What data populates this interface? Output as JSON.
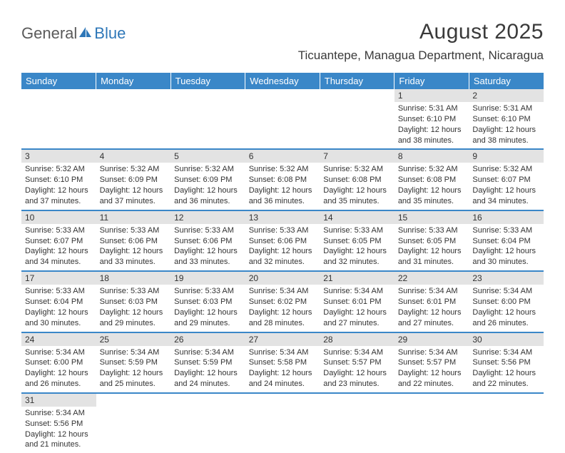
{
  "logo": {
    "text1": "General",
    "text2": "Blue"
  },
  "title": "August 2025",
  "location": "Ticuantepe, Managua Department, Nicaragua",
  "colors": {
    "header_bg": "#3a87c8",
    "header_text": "#ffffff",
    "daynum_bg": "#e3e3e3",
    "row_divider": "#3a87c8",
    "body_text": "#333333",
    "logo_gray": "#5a5a5a",
    "logo_blue": "#2e77b8"
  },
  "fonts": {
    "title_size_pt": 22,
    "location_size_pt": 13,
    "header_size_pt": 10,
    "body_size_pt": 8
  },
  "weekdays": [
    "Sunday",
    "Monday",
    "Tuesday",
    "Wednesday",
    "Thursday",
    "Friday",
    "Saturday"
  ],
  "weeks": [
    [
      {
        "n": "",
        "sr": "",
        "ss": "",
        "dl": ""
      },
      {
        "n": "",
        "sr": "",
        "ss": "",
        "dl": ""
      },
      {
        "n": "",
        "sr": "",
        "ss": "",
        "dl": ""
      },
      {
        "n": "",
        "sr": "",
        "ss": "",
        "dl": ""
      },
      {
        "n": "",
        "sr": "",
        "ss": "",
        "dl": ""
      },
      {
        "n": "1",
        "sr": "Sunrise: 5:31 AM",
        "ss": "Sunset: 6:10 PM",
        "dl": "Daylight: 12 hours and 38 minutes."
      },
      {
        "n": "2",
        "sr": "Sunrise: 5:31 AM",
        "ss": "Sunset: 6:10 PM",
        "dl": "Daylight: 12 hours and 38 minutes."
      }
    ],
    [
      {
        "n": "3",
        "sr": "Sunrise: 5:32 AM",
        "ss": "Sunset: 6:10 PM",
        "dl": "Daylight: 12 hours and 37 minutes."
      },
      {
        "n": "4",
        "sr": "Sunrise: 5:32 AM",
        "ss": "Sunset: 6:09 PM",
        "dl": "Daylight: 12 hours and 37 minutes."
      },
      {
        "n": "5",
        "sr": "Sunrise: 5:32 AM",
        "ss": "Sunset: 6:09 PM",
        "dl": "Daylight: 12 hours and 36 minutes."
      },
      {
        "n": "6",
        "sr": "Sunrise: 5:32 AM",
        "ss": "Sunset: 6:08 PM",
        "dl": "Daylight: 12 hours and 36 minutes."
      },
      {
        "n": "7",
        "sr": "Sunrise: 5:32 AM",
        "ss": "Sunset: 6:08 PM",
        "dl": "Daylight: 12 hours and 35 minutes."
      },
      {
        "n": "8",
        "sr": "Sunrise: 5:32 AM",
        "ss": "Sunset: 6:08 PM",
        "dl": "Daylight: 12 hours and 35 minutes."
      },
      {
        "n": "9",
        "sr": "Sunrise: 5:32 AM",
        "ss": "Sunset: 6:07 PM",
        "dl": "Daylight: 12 hours and 34 minutes."
      }
    ],
    [
      {
        "n": "10",
        "sr": "Sunrise: 5:33 AM",
        "ss": "Sunset: 6:07 PM",
        "dl": "Daylight: 12 hours and 34 minutes."
      },
      {
        "n": "11",
        "sr": "Sunrise: 5:33 AM",
        "ss": "Sunset: 6:06 PM",
        "dl": "Daylight: 12 hours and 33 minutes."
      },
      {
        "n": "12",
        "sr": "Sunrise: 5:33 AM",
        "ss": "Sunset: 6:06 PM",
        "dl": "Daylight: 12 hours and 33 minutes."
      },
      {
        "n": "13",
        "sr": "Sunrise: 5:33 AM",
        "ss": "Sunset: 6:06 PM",
        "dl": "Daylight: 12 hours and 32 minutes."
      },
      {
        "n": "14",
        "sr": "Sunrise: 5:33 AM",
        "ss": "Sunset: 6:05 PM",
        "dl": "Daylight: 12 hours and 32 minutes."
      },
      {
        "n": "15",
        "sr": "Sunrise: 5:33 AM",
        "ss": "Sunset: 6:05 PM",
        "dl": "Daylight: 12 hours and 31 minutes."
      },
      {
        "n": "16",
        "sr": "Sunrise: 5:33 AM",
        "ss": "Sunset: 6:04 PM",
        "dl": "Daylight: 12 hours and 30 minutes."
      }
    ],
    [
      {
        "n": "17",
        "sr": "Sunrise: 5:33 AM",
        "ss": "Sunset: 6:04 PM",
        "dl": "Daylight: 12 hours and 30 minutes."
      },
      {
        "n": "18",
        "sr": "Sunrise: 5:33 AM",
        "ss": "Sunset: 6:03 PM",
        "dl": "Daylight: 12 hours and 29 minutes."
      },
      {
        "n": "19",
        "sr": "Sunrise: 5:33 AM",
        "ss": "Sunset: 6:03 PM",
        "dl": "Daylight: 12 hours and 29 minutes."
      },
      {
        "n": "20",
        "sr": "Sunrise: 5:34 AM",
        "ss": "Sunset: 6:02 PM",
        "dl": "Daylight: 12 hours and 28 minutes."
      },
      {
        "n": "21",
        "sr": "Sunrise: 5:34 AM",
        "ss": "Sunset: 6:01 PM",
        "dl": "Daylight: 12 hours and 27 minutes."
      },
      {
        "n": "22",
        "sr": "Sunrise: 5:34 AM",
        "ss": "Sunset: 6:01 PM",
        "dl": "Daylight: 12 hours and 27 minutes."
      },
      {
        "n": "23",
        "sr": "Sunrise: 5:34 AM",
        "ss": "Sunset: 6:00 PM",
        "dl": "Daylight: 12 hours and 26 minutes."
      }
    ],
    [
      {
        "n": "24",
        "sr": "Sunrise: 5:34 AM",
        "ss": "Sunset: 6:00 PM",
        "dl": "Daylight: 12 hours and 26 minutes."
      },
      {
        "n": "25",
        "sr": "Sunrise: 5:34 AM",
        "ss": "Sunset: 5:59 PM",
        "dl": "Daylight: 12 hours and 25 minutes."
      },
      {
        "n": "26",
        "sr": "Sunrise: 5:34 AM",
        "ss": "Sunset: 5:59 PM",
        "dl": "Daylight: 12 hours and 24 minutes."
      },
      {
        "n": "27",
        "sr": "Sunrise: 5:34 AM",
        "ss": "Sunset: 5:58 PM",
        "dl": "Daylight: 12 hours and 24 minutes."
      },
      {
        "n": "28",
        "sr": "Sunrise: 5:34 AM",
        "ss": "Sunset: 5:57 PM",
        "dl": "Daylight: 12 hours and 23 minutes."
      },
      {
        "n": "29",
        "sr": "Sunrise: 5:34 AM",
        "ss": "Sunset: 5:57 PM",
        "dl": "Daylight: 12 hours and 22 minutes."
      },
      {
        "n": "30",
        "sr": "Sunrise: 5:34 AM",
        "ss": "Sunset: 5:56 PM",
        "dl": "Daylight: 12 hours and 22 minutes."
      }
    ],
    [
      {
        "n": "31",
        "sr": "Sunrise: 5:34 AM",
        "ss": "Sunset: 5:56 PM",
        "dl": "Daylight: 12 hours and 21 minutes."
      },
      {
        "n": "",
        "sr": "",
        "ss": "",
        "dl": ""
      },
      {
        "n": "",
        "sr": "",
        "ss": "",
        "dl": ""
      },
      {
        "n": "",
        "sr": "",
        "ss": "",
        "dl": ""
      },
      {
        "n": "",
        "sr": "",
        "ss": "",
        "dl": ""
      },
      {
        "n": "",
        "sr": "",
        "ss": "",
        "dl": ""
      },
      {
        "n": "",
        "sr": "",
        "ss": "",
        "dl": ""
      }
    ]
  ]
}
